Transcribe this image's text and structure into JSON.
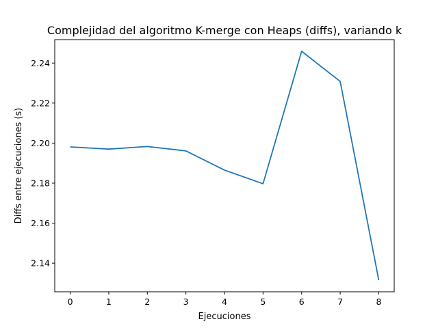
{
  "chart_data": {
    "type": "line",
    "title": "Complejidad del algoritmo K-merge con Heaps (diffs), variando k",
    "xlabel": "Ejecuciones",
    "ylabel": "Diffs entre ejecuciones (s)",
    "x": [
      0,
      1,
      2,
      3,
      4,
      5,
      6,
      7,
      8
    ],
    "series": [
      {
        "values": [
          2.1981,
          2.197,
          2.1983,
          2.1961,
          2.1865,
          2.1797,
          2.2459,
          2.2308,
          2.1315
        ],
        "color": "#1f77b4"
      }
    ],
    "xticks": [
      0,
      1,
      2,
      3,
      4,
      5,
      6,
      7,
      8
    ],
    "yticks": [
      2.14,
      2.16,
      2.18,
      2.2,
      2.22,
      2.24
    ],
    "ytick_labels": [
      "2.14",
      "2.16",
      "2.18",
      "2.20",
      "2.22",
      "2.24"
    ],
    "xlim": [
      -0.4,
      8.4
    ],
    "ylim": [
      2.1257,
      2.2517
    ],
    "grid": false,
    "legend": "none"
  }
}
